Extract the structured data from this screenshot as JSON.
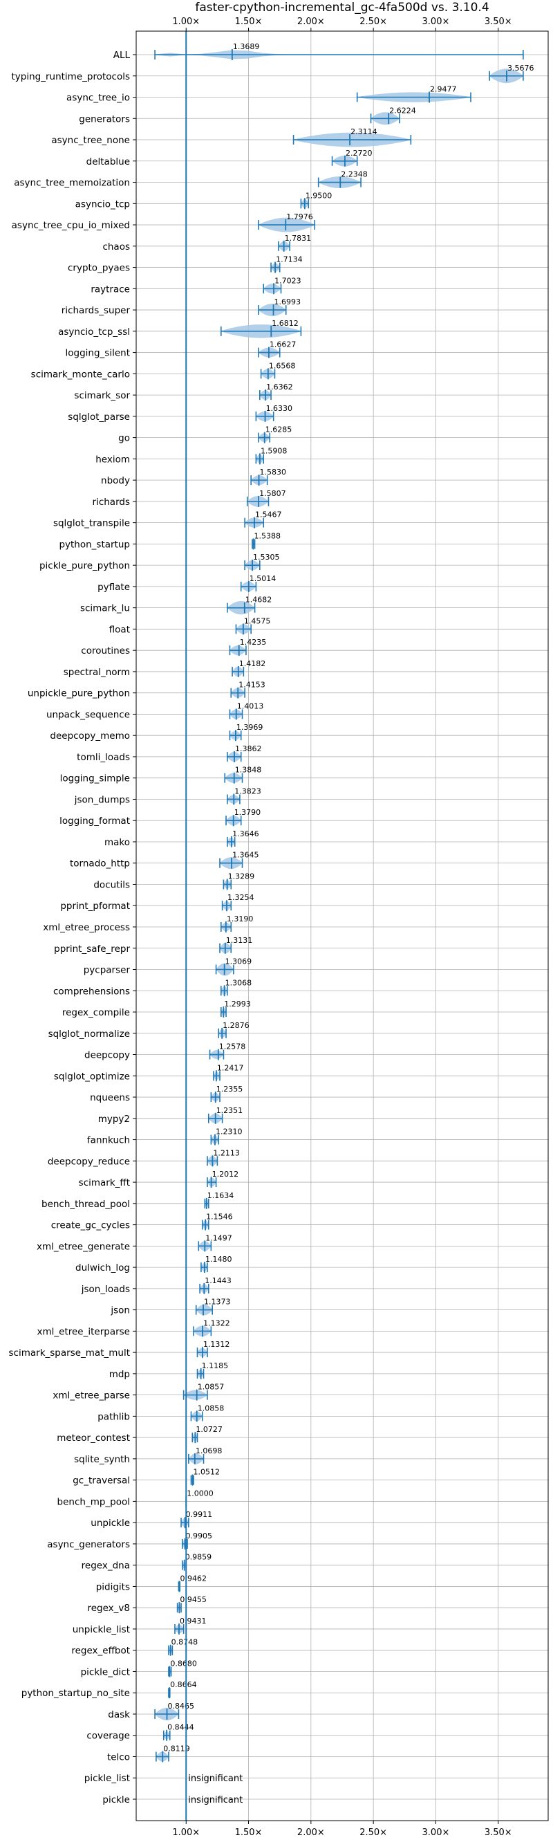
{
  "chart_data": {
    "type": "violin",
    "title": "faster-cpython-incremental_gc-4fa500d vs. 3.10.4",
    "xlabel": "",
    "ylabel": "",
    "xlim": [
      0.6,
      3.9
    ],
    "xticks": [
      1.0,
      1.5,
      2.0,
      2.5,
      3.0,
      3.5
    ],
    "xtick_labels": [
      "1.00×",
      "1.50×",
      "2.00×",
      "2.50×",
      "3.00×",
      "3.50×"
    ],
    "reference_line": 1.0,
    "grid": true,
    "color": "#1f77b4",
    "fill_color": "#a6c8e6",
    "benchmarks": [
      {
        "name": "ALL",
        "mean": 1.3689,
        "label": "1.3689",
        "min": 0.75,
        "max": 3.7,
        "width": 0.5,
        "shape": "wide"
      },
      {
        "name": "typing_runtime_protocols",
        "mean": 3.5676,
        "label": "3.5676",
        "min": 3.43,
        "max": 3.7,
        "width": 0.8
      },
      {
        "name": "async_tree_io",
        "mean": 2.9477,
        "label": "2.9477",
        "min": 2.37,
        "max": 3.28,
        "width": 0.55
      },
      {
        "name": "generators",
        "mean": 2.6224,
        "label": "2.6224",
        "min": 2.48,
        "max": 2.71,
        "width": 0.7
      },
      {
        "name": "async_tree_none",
        "mean": 2.3114,
        "label": "2.3114",
        "min": 1.86,
        "max": 2.8,
        "width": 0.8
      },
      {
        "name": "deltablue",
        "mean": 2.272,
        "label": "2.2720",
        "min": 2.17,
        "max": 2.37,
        "width": 0.6
      },
      {
        "name": "async_tree_memoization",
        "mean": 2.2348,
        "label": "2.2348",
        "min": 2.06,
        "max": 2.4,
        "width": 0.65
      },
      {
        "name": "asyncio_tcp",
        "mean": 1.95,
        "label": "1.9500",
        "min": 1.92,
        "max": 1.98,
        "width": 0.5
      },
      {
        "name": "async_tree_cpu_io_mixed",
        "mean": 1.7976,
        "label": "1.7976",
        "min": 1.58,
        "max": 2.03,
        "width": 0.8
      },
      {
        "name": "chaos",
        "mean": 1.7831,
        "label": "1.7831",
        "min": 1.74,
        "max": 1.83,
        "width": 0.55
      },
      {
        "name": "crypto_pyaes",
        "mean": 1.7134,
        "label": "1.7134",
        "min": 1.68,
        "max": 1.75,
        "width": 0.5
      },
      {
        "name": "raytrace",
        "mean": 1.7023,
        "label": "1.7023",
        "min": 1.62,
        "max": 1.76,
        "width": 0.55
      },
      {
        "name": "richards_super",
        "mean": 1.6993,
        "label": "1.6993",
        "min": 1.58,
        "max": 1.8,
        "width": 0.7
      },
      {
        "name": "asyncio_tcp_ssl",
        "mean": 1.6812,
        "label": "1.6812",
        "min": 1.28,
        "max": 1.92,
        "width": 0.75
      },
      {
        "name": "logging_silent",
        "mean": 1.6627,
        "label": "1.6627",
        "min": 1.58,
        "max": 1.75,
        "width": 0.55
      },
      {
        "name": "scimark_monte_carlo",
        "mean": 1.6568,
        "label": "1.6568",
        "min": 1.6,
        "max": 1.71,
        "width": 0.55
      },
      {
        "name": "scimark_sor",
        "mean": 1.6362,
        "label": "1.6362",
        "min": 1.59,
        "max": 1.68,
        "width": 0.55
      },
      {
        "name": "sqlglot_parse",
        "mean": 1.633,
        "label": "1.6330",
        "min": 1.56,
        "max": 1.7,
        "width": 0.55
      },
      {
        "name": "go",
        "mean": 1.6285,
        "label": "1.6285",
        "min": 1.58,
        "max": 1.67,
        "width": 0.5
      },
      {
        "name": "hexiom",
        "mean": 1.5908,
        "label": "1.5908",
        "min": 1.56,
        "max": 1.62,
        "width": 0.5
      },
      {
        "name": "nbody",
        "mean": 1.583,
        "label": "1.5830",
        "min": 1.52,
        "max": 1.65,
        "width": 0.55
      },
      {
        "name": "richards",
        "mean": 1.5807,
        "label": "1.5807",
        "min": 1.49,
        "max": 1.66,
        "width": 0.6
      },
      {
        "name": "sqlglot_transpile",
        "mean": 1.5467,
        "label": "1.5467",
        "min": 1.47,
        "max": 1.62,
        "width": 0.55
      },
      {
        "name": "python_startup",
        "mean": 1.5388,
        "label": "1.5388",
        "min": 1.53,
        "max": 1.55,
        "width": 0.3
      },
      {
        "name": "pickle_pure_python",
        "mean": 1.5305,
        "label": "1.5305",
        "min": 1.47,
        "max": 1.59,
        "width": 0.55
      },
      {
        "name": "pyflate",
        "mean": 1.5014,
        "label": "1.5014",
        "min": 1.44,
        "max": 1.56,
        "width": 0.55
      },
      {
        "name": "scimark_lu",
        "mean": 1.4682,
        "label": "1.4682",
        "min": 1.33,
        "max": 1.55,
        "width": 0.75
      },
      {
        "name": "float",
        "mean": 1.4575,
        "label": "1.4575",
        "min": 1.4,
        "max": 1.52,
        "width": 0.55
      },
      {
        "name": "coroutines",
        "mean": 1.4235,
        "label": "1.4235",
        "min": 1.35,
        "max": 1.48,
        "width": 0.55
      },
      {
        "name": "spectral_norm",
        "mean": 1.4182,
        "label": "1.4182",
        "min": 1.37,
        "max": 1.46,
        "width": 0.55
      },
      {
        "name": "unpickle_pure_python",
        "mean": 1.4153,
        "label": "1.4153",
        "min": 1.36,
        "max": 1.47,
        "width": 0.55
      },
      {
        "name": "unpack_sequence",
        "mean": 1.4013,
        "label": "1.4013",
        "min": 1.35,
        "max": 1.45,
        "width": 0.55
      },
      {
        "name": "deepcopy_memo",
        "mean": 1.3969,
        "label": "1.3969",
        "min": 1.35,
        "max": 1.44,
        "width": 0.5
      },
      {
        "name": "tomli_loads",
        "mean": 1.3862,
        "label": "1.3862",
        "min": 1.33,
        "max": 1.44,
        "width": 0.55
      },
      {
        "name": "logging_simple",
        "mean": 1.3848,
        "label": "1.3848",
        "min": 1.31,
        "max": 1.45,
        "width": 0.55
      },
      {
        "name": "json_dumps",
        "mean": 1.3823,
        "label": "1.3823",
        "min": 1.33,
        "max": 1.43,
        "width": 0.5
      },
      {
        "name": "logging_format",
        "mean": 1.379,
        "label": "1.3790",
        "min": 1.32,
        "max": 1.44,
        "width": 0.55
      },
      {
        "name": "mako",
        "mean": 1.3646,
        "label": "1.3646",
        "min": 1.33,
        "max": 1.39,
        "width": 0.5
      },
      {
        "name": "tornado_http",
        "mean": 1.3645,
        "label": "1.3645",
        "min": 1.27,
        "max": 1.45,
        "width": 0.65
      },
      {
        "name": "docutils",
        "mean": 1.3289,
        "label": "1.3289",
        "min": 1.3,
        "max": 1.36,
        "width": 0.5
      },
      {
        "name": "pprint_pformat",
        "mean": 1.3254,
        "label": "1.3254",
        "min": 1.29,
        "max": 1.36,
        "width": 0.5
      },
      {
        "name": "xml_etree_process",
        "mean": 1.319,
        "label": "1.3190",
        "min": 1.28,
        "max": 1.36,
        "width": 0.5
      },
      {
        "name": "pprint_safe_repr",
        "mean": 1.3131,
        "label": "1.3131",
        "min": 1.27,
        "max": 1.36,
        "width": 0.6
      },
      {
        "name": "pycparser",
        "mean": 1.3069,
        "label": "1.3069",
        "min": 1.24,
        "max": 1.38,
        "width": 0.7
      },
      {
        "name": "comprehensions",
        "mean": 1.3068,
        "label": "1.3068",
        "min": 1.28,
        "max": 1.33,
        "width": 0.5
      },
      {
        "name": "regex_compile",
        "mean": 1.2993,
        "label": "1.2993",
        "min": 1.28,
        "max": 1.32,
        "width": 0.45
      },
      {
        "name": "sqlglot_normalize",
        "mean": 1.2876,
        "label": "1.2876",
        "min": 1.26,
        "max": 1.32,
        "width": 0.5
      },
      {
        "name": "deepcopy",
        "mean": 1.2578,
        "label": "1.2578",
        "min": 1.19,
        "max": 1.3,
        "width": 0.5
      },
      {
        "name": "sqlglot_optimize",
        "mean": 1.2417,
        "label": "1.2417",
        "min": 1.22,
        "max": 1.27,
        "width": 0.45
      },
      {
        "name": "nqueens",
        "mean": 1.2355,
        "label": "1.2355",
        "min": 1.2,
        "max": 1.27,
        "width": 0.5
      },
      {
        "name": "mypy2",
        "mean": 1.2351,
        "label": "1.2351",
        "min": 1.18,
        "max": 1.29,
        "width": 0.55
      },
      {
        "name": "fannkuch",
        "mean": 1.231,
        "label": "1.2310",
        "min": 1.2,
        "max": 1.26,
        "width": 0.5
      },
      {
        "name": "deepcopy_reduce",
        "mean": 1.2113,
        "label": "1.2113",
        "min": 1.17,
        "max": 1.25,
        "width": 0.55
      },
      {
        "name": "scimark_fft",
        "mean": 1.2012,
        "label": "1.2012",
        "min": 1.17,
        "max": 1.24,
        "width": 0.5
      },
      {
        "name": "bench_thread_pool",
        "mean": 1.1634,
        "label": "1.1634",
        "min": 1.15,
        "max": 1.18,
        "width": 0.45
      },
      {
        "name": "create_gc_cycles",
        "mean": 1.1546,
        "label": "1.1546",
        "min": 1.13,
        "max": 1.18,
        "width": 0.5
      },
      {
        "name": "xml_etree_generate",
        "mean": 1.1497,
        "label": "1.1497",
        "min": 1.1,
        "max": 1.2,
        "width": 0.55
      },
      {
        "name": "dulwich_log",
        "mean": 1.148,
        "label": "1.1480",
        "min": 1.12,
        "max": 1.17,
        "width": 0.5
      },
      {
        "name": "json_loads",
        "mean": 1.1443,
        "label": "1.1443",
        "min": 1.11,
        "max": 1.18,
        "width": 0.5
      },
      {
        "name": "json",
        "mean": 1.1373,
        "label": "1.1373",
        "min": 1.08,
        "max": 1.21,
        "width": 0.6
      },
      {
        "name": "xml_etree_iterparse",
        "mean": 1.1322,
        "label": "1.1322",
        "min": 1.06,
        "max": 1.2,
        "width": 0.6
      },
      {
        "name": "scimark_sparse_mat_mult",
        "mean": 1.1312,
        "label": "1.1312",
        "min": 1.09,
        "max": 1.17,
        "width": 0.5
      },
      {
        "name": "mdp",
        "mean": 1.1185,
        "label": "1.1185",
        "min": 1.09,
        "max": 1.14,
        "width": 0.45
      },
      {
        "name": "xml_etree_parse",
        "mean": 1.0857,
        "label": "1.0857",
        "min": 0.98,
        "max": 1.17,
        "width": 0.55
      },
      {
        "name": "pathlib",
        "mean": 1.0858,
        "label": "1.0858",
        "min": 1.04,
        "max": 1.13,
        "width": 0.55
      },
      {
        "name": "meteor_contest",
        "mean": 1.0727,
        "label": "1.0727",
        "min": 1.05,
        "max": 1.09,
        "width": 0.45
      },
      {
        "name": "sqlite_synth",
        "mean": 1.0698,
        "label": "1.0698",
        "min": 1.02,
        "max": 1.14,
        "width": 0.6
      },
      {
        "name": "gc_traversal",
        "mean": 1.0512,
        "label": "1.0512",
        "min": 1.04,
        "max": 1.06,
        "width": 0.3
      },
      {
        "name": "bench_mp_pool",
        "mean": 1.0,
        "label": "1.0000",
        "min": 1.0,
        "max": 1.0,
        "width": 0.1
      },
      {
        "name": "unpickle",
        "mean": 0.9911,
        "label": "0.9911",
        "min": 0.96,
        "max": 1.02,
        "width": 0.5
      },
      {
        "name": "async_generators",
        "mean": 0.9905,
        "label": "0.9905",
        "min": 0.97,
        "max": 1.01,
        "width": 0.45
      },
      {
        "name": "regex_dna",
        "mean": 0.9859,
        "label": "0.9859",
        "min": 0.97,
        "max": 1.0,
        "width": 0.4
      },
      {
        "name": "pidigits",
        "mean": 0.9462,
        "label": "0.9462",
        "min": 0.94,
        "max": 0.95,
        "width": 0.3
      },
      {
        "name": "regex_v8",
        "mean": 0.9455,
        "label": "0.9455",
        "min": 0.93,
        "max": 0.96,
        "width": 0.4
      },
      {
        "name": "unpickle_list",
        "mean": 0.9431,
        "label": "0.9431",
        "min": 0.91,
        "max": 0.98,
        "width": 0.5
      },
      {
        "name": "regex_effbot",
        "mean": 0.8748,
        "label": "0.8748",
        "min": 0.86,
        "max": 0.89,
        "width": 0.45
      },
      {
        "name": "pickle_dict",
        "mean": 0.868,
        "label": "0.8680",
        "min": 0.86,
        "max": 0.88,
        "width": 0.35
      },
      {
        "name": "python_startup_no_site",
        "mean": 0.8664,
        "label": "0.8664",
        "min": 0.86,
        "max": 0.87,
        "width": 0.25
      },
      {
        "name": "dask",
        "mean": 0.8465,
        "label": "0.8465",
        "min": 0.75,
        "max": 0.94,
        "width": 0.7
      },
      {
        "name": "coverage",
        "mean": 0.8444,
        "label": "0.8444",
        "min": 0.82,
        "max": 0.87,
        "width": 0.45
      },
      {
        "name": "telco",
        "mean": 0.8119,
        "label": "0.8119",
        "min": 0.76,
        "max": 0.86,
        "width": 0.55
      },
      {
        "name": "pickle_list",
        "mean": null,
        "label": "insignificant"
      },
      {
        "name": "pickle",
        "mean": null,
        "label": "insignificant"
      }
    ]
  }
}
